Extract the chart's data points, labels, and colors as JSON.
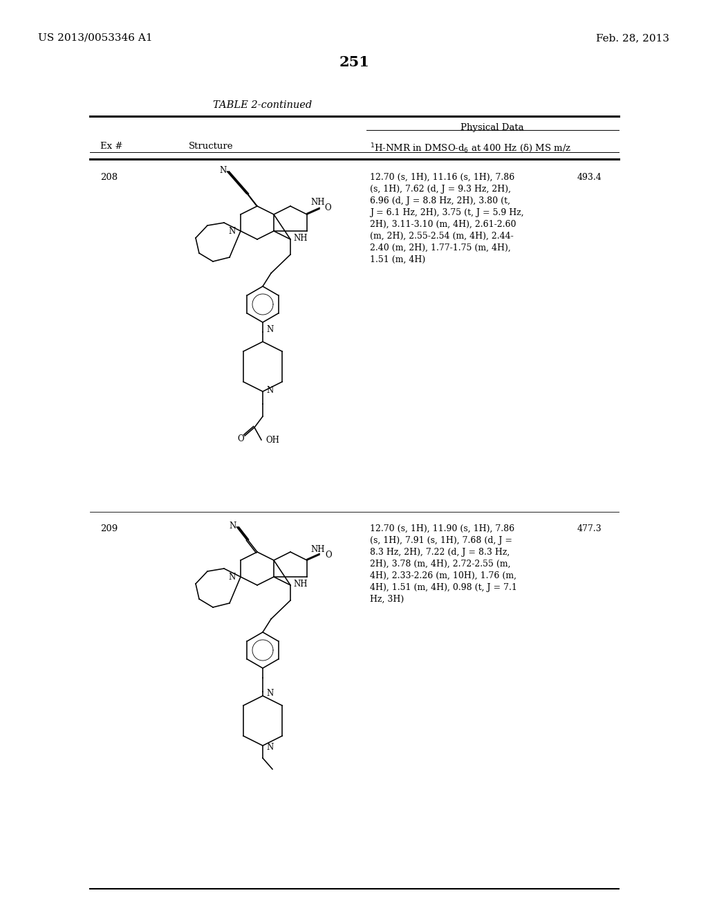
{
  "background_color": "#ffffff",
  "page_number": "251",
  "header_left": "US 2013/0053346 A1",
  "header_right": "Feb. 28, 2013",
  "table_title": "TABLE 2-continued",
  "nmr_header": "$^{1}$H-NMR in DMSO-d$_{6}$ at 400 Hz (δ) MS m/z",
  "phys_header": "Physical Data",
  "col_ex": "Ex #",
  "col_struct": "Structure",
  "entries": [
    {
      "ex": "208",
      "nmr": "12.70 (s, 1H), 11.16 (s, 1H), 7.86\n(s, 1H), 7.62 (d, J = 9.3 Hz, 2H),\n6.96 (d, J = 8.8 Hz, 2H), 3.80 (t,\nJ = 6.1 Hz, 2H), 3.75 (t, J = 5.9 Hz,\n2H), 3.11-3.10 (m, 4H), 2.61-2.60\n(m, 2H), 2.55-2.54 (m, 4H), 2.44-\n2.40 (m, 2H), 1.77-1.75 (m, 4H),\n1.51 (m, 4H)",
      "ms": "493.4"
    },
    {
      "ex": "209",
      "nmr": "12.70 (s, 1H), 11.90 (s, 1H), 7.86\n(s, 1H), 7.91 (s, 1H), 7.68 (d, J =\n8.3 Hz, 2H), 7.22 (d, J = 8.3 Hz,\n2H), 3.78 (m, 4H), 2.72-2.55 (m,\n4H), 2.33-2.26 (m, 10H), 1.76 (m,\n4H), 1.51 (m, 4H), 0.98 (t, J = 7.1\nHz, 3H)",
      "ms": "477.3"
    }
  ]
}
